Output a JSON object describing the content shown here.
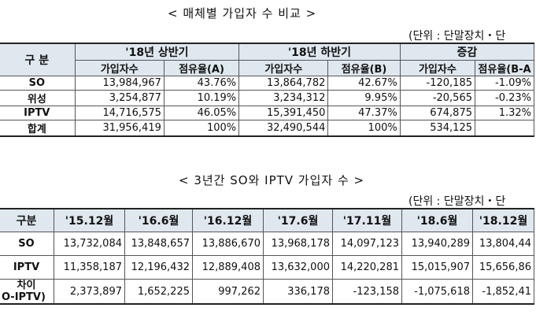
{
  "table1": {
    "title": "< 매체별 가입자 수 비교 >",
    "unit": "(단위 : 단말장치・단",
    "row_header": "구 분",
    "groups": [
      "'18년 상반기",
      "'18년 하반기",
      "증감"
    ],
    "subheaders": [
      "가입자수",
      "점유율(A)",
      "가입자수",
      "점유율(B)",
      "가입자수",
      "점유율(B-A"
    ],
    "rows": [
      {
        "label": "SO",
        "cells": [
          "13,984,967",
          "43.76%",
          "13,864,782",
          "42.67%",
          "-120,185",
          "-1.09%"
        ]
      },
      {
        "label": "위성",
        "cells": [
          "3,254,877",
          "10.19%",
          "3,234,312",
          "9.95%",
          "-20,565",
          "-0.23%"
        ]
      },
      {
        "label": "IPTV",
        "cells": [
          "14,716,575",
          "46.05%",
          "15,391,450",
          "47.37%",
          "674,875",
          "1.32%"
        ]
      },
      {
        "label": "합계",
        "cells": [
          "31,956,419",
          "100%",
          "32,490,544",
          "100%",
          "534,125",
          ""
        ]
      }
    ]
  },
  "table2": {
    "title": "< 3년간 SO와 IPTV 가입자 수 >",
    "unit": "(단위 : 단말장치・단",
    "headers": [
      "구분",
      "'15.12월",
      "'16.6월",
      "'16.12월",
      "'17.6월",
      "'17.11월",
      "'18.6월",
      "'18.12월"
    ],
    "rows": [
      {
        "label": "SO",
        "cells": [
          "13,732,084",
          "13,848,657",
          "13,886,670",
          "13,968,178",
          "14,097,123",
          "13,940,289",
          "13,804,44"
        ]
      },
      {
        "label": "IPTV",
        "cells": [
          "11,358,187",
          "12,196,432",
          "12,889,408",
          "13,632,000",
          "14,220,281",
          "15,015,907",
          "15,656,86"
        ]
      },
      {
        "label_line1": "차이",
        "label_line2": "O-IPTV)",
        "cells": [
          "2,373,897",
          "1,652,225",
          "997,262",
          "336,178",
          "-123,158",
          "-1,075,618",
          "-1,852,41"
        ]
      }
    ]
  }
}
